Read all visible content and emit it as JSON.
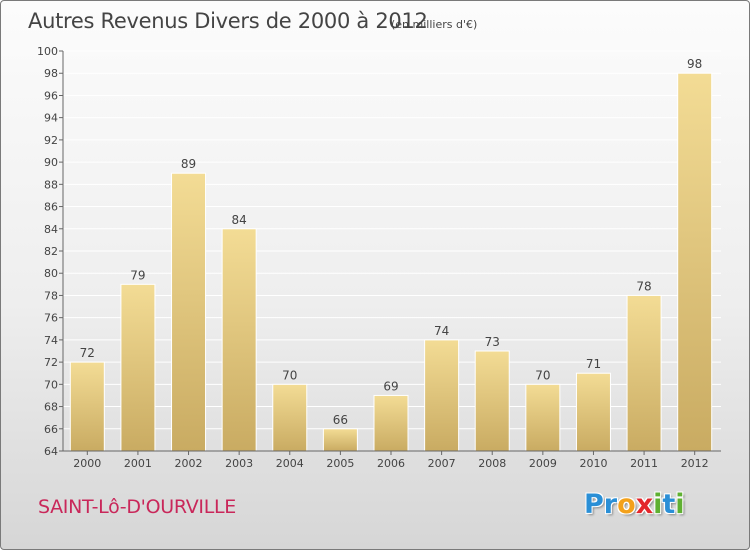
{
  "header": {
    "title": "Autres Revenus Divers de 2000 à 2012",
    "subtitle": "(en milliers d'€)"
  },
  "footer": {
    "commune": "SAINT-Lô-D'OURVILLE",
    "logo_letters": [
      {
        "char": "P",
        "color": "#2a8fd6"
      },
      {
        "char": "r",
        "color": "#2a8fd6"
      },
      {
        "char": "o",
        "color": "#f3a11b"
      },
      {
        "char": "x",
        "color": "#e3262b"
      },
      {
        "char": "i",
        "color": "#5fb032"
      },
      {
        "char": "t",
        "color": "#2a8fd6"
      },
      {
        "char": "i",
        "color": "#5fb032"
      }
    ]
  },
  "colors": {
    "bar_light": "#f3dc95",
    "bar_dark": "#c9ab62",
    "grid": "#ffffff",
    "text": "#444444"
  },
  "chart_data": {
    "type": "bar",
    "title": "Autres Revenus Divers de 2000 à 2012",
    "subtitle": "(en milliers d'€)",
    "xlabel": "",
    "ylabel": "",
    "categories": [
      "2000",
      "2001",
      "2002",
      "2003",
      "2004",
      "2005",
      "2006",
      "2007",
      "2008",
      "2009",
      "2010",
      "2011",
      "2012"
    ],
    "values": [
      72,
      79,
      89,
      84,
      70,
      66,
      69,
      74,
      73,
      70,
      71,
      78,
      98
    ],
    "data_labels": [
      "72",
      "79",
      "89",
      "84",
      "70",
      "66",
      "69",
      "74",
      "73",
      "70",
      "71",
      "78",
      "98"
    ],
    "ylim": [
      64,
      100
    ],
    "yticks": [
      64,
      66,
      68,
      70,
      72,
      74,
      76,
      78,
      80,
      82,
      84,
      86,
      88,
      90,
      92,
      94,
      96,
      98,
      100
    ],
    "grid": true,
    "legend": "none"
  }
}
